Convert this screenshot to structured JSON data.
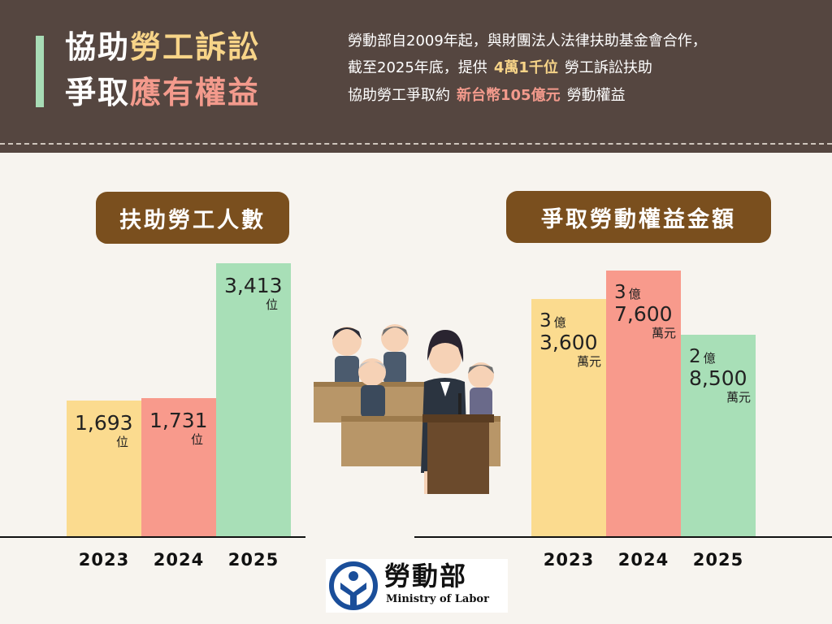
{
  "header": {
    "title_line1": [
      "協助",
      "勞工訴訟"
    ],
    "title_line2": [
      "爭取",
      "應有權益"
    ],
    "summary": {
      "line1": "勞動部自2009年起，與財團法人法律扶助基金會合作，",
      "line2_pre": "截至2025年底，提供",
      "line2_highlight": "4萬1千位",
      "line2_post": "勞工訴訟扶助",
      "line3_pre": "協助勞工爭取約",
      "line3_highlight": "新台幣105億元",
      "line3_post": "勞動權益"
    }
  },
  "colors": {
    "header_bg": "#554640",
    "bar_2023": "#fbdb8f",
    "bar_2024": "#f89a8c",
    "bar_2025": "#a8dfb7",
    "pill_bg": "#7a4f1e"
  },
  "icons": [
    "labor-court-illustration",
    "ministry-of-labor-logo-icon"
  ],
  "chart_data": [
    {
      "type": "bar",
      "title": "扶助勞工人數",
      "categories": [
        "2023",
        "2024",
        "2025"
      ],
      "values": [
        1693,
        1731,
        3413
      ],
      "labels": [
        "1,693",
        "1,731",
        "3,413"
      ],
      "unit": "位",
      "ylim": [
        0,
        3413
      ],
      "grid": false
    },
    {
      "type": "bar",
      "title": "爭取勞動權益金額",
      "categories": [
        "2023",
        "2024",
        "2025"
      ],
      "values": [
        336000000,
        376000000,
        285000000
      ],
      "labels": [
        {
          "yi": "3",
          "yi_unit": "億",
          "wan": "3,600",
          "wan_unit": "萬元"
        },
        {
          "yi": "3",
          "yi_unit": "億",
          "wan": "7,600",
          "wan_unit": "萬元"
        },
        {
          "yi": "2",
          "yi_unit": "億",
          "wan": "8,500",
          "wan_unit": "萬元"
        }
      ],
      "ylim": [
        0,
        376000000
      ],
      "grid": false
    }
  ],
  "logo": {
    "name": "勞動部",
    "english": "Ministry of Labor"
  }
}
